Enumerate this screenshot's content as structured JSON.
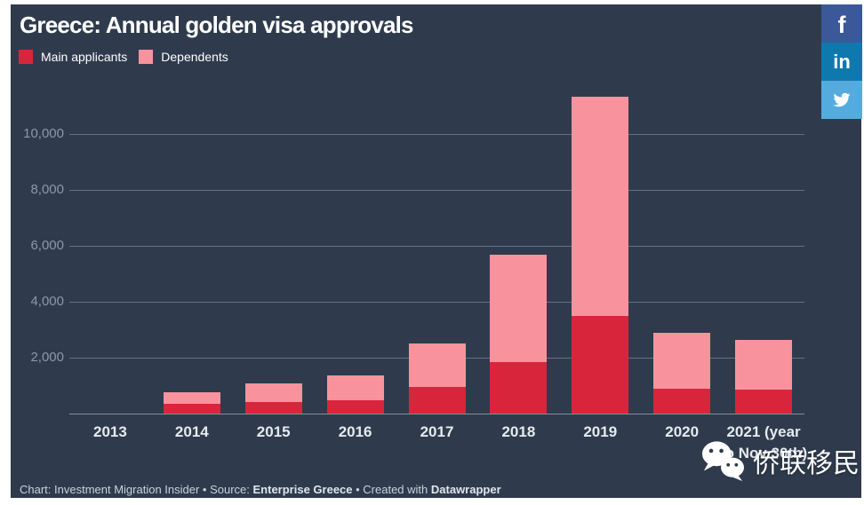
{
  "title": "Greece: Annual golden visa approvals",
  "legend": [
    {
      "label": "Main applicants",
      "color": "#d9253b"
    },
    {
      "label": "Dependents",
      "color": "#f8939d"
    }
  ],
  "share_buttons": [
    {
      "name": "facebook",
      "glyph": "f",
      "color": "#3b5998"
    },
    {
      "name": "linkedin",
      "glyph": "in",
      "color": "#0f79ae"
    },
    {
      "name": "twitter",
      "icon": "twitter-bird-icon",
      "color": "#55abde"
    }
  ],
  "footer": {
    "part1": "Chart: Investment Migration Insider • Source: ",
    "source": "Enterprise Greece",
    "part2": " • Created with ",
    "tool": "Datawrapper"
  },
  "watermark": {
    "icon": "wechat-icon",
    "text": "侨联移民"
  },
  "colors": {
    "background": "#2f3b4d",
    "title": "#ffffff",
    "gridline": "rgba(255,255,255,0.27)",
    "y_tick": "#8d97a6",
    "x_tick": "#e6eaef",
    "footer": "#c9d1da"
  },
  "chart_data": {
    "type": "bar",
    "stacked": true,
    "title": "Greece: Annual golden visa approvals",
    "categories": [
      "2013",
      "2014",
      "2015",
      "2016",
      "2017",
      "2018",
      "2019",
      "2020",
      "2021 (year\nto Nov 30th)"
    ],
    "series": [
      {
        "name": "Main applicants",
        "color": "#d9253b",
        "values": [
          0,
          350,
          400,
          470,
          950,
          1850,
          3500,
          900,
          870
        ]
      },
      {
        "name": "Dependents",
        "color": "#f8939d",
        "values": [
          0,
          400,
          680,
          880,
          1550,
          3850,
          7850,
          2000,
          1780
        ]
      }
    ],
    "xlabel": "",
    "ylabel": "",
    "ylim": [
      0,
      11500
    ],
    "yticks": [
      2000,
      4000,
      6000,
      8000,
      10000
    ],
    "ytick_labels": [
      "2,000",
      "4,000",
      "6,000",
      "8,000",
      "10,000"
    ],
    "grid": "horizontal",
    "legend_position": "top-left"
  }
}
